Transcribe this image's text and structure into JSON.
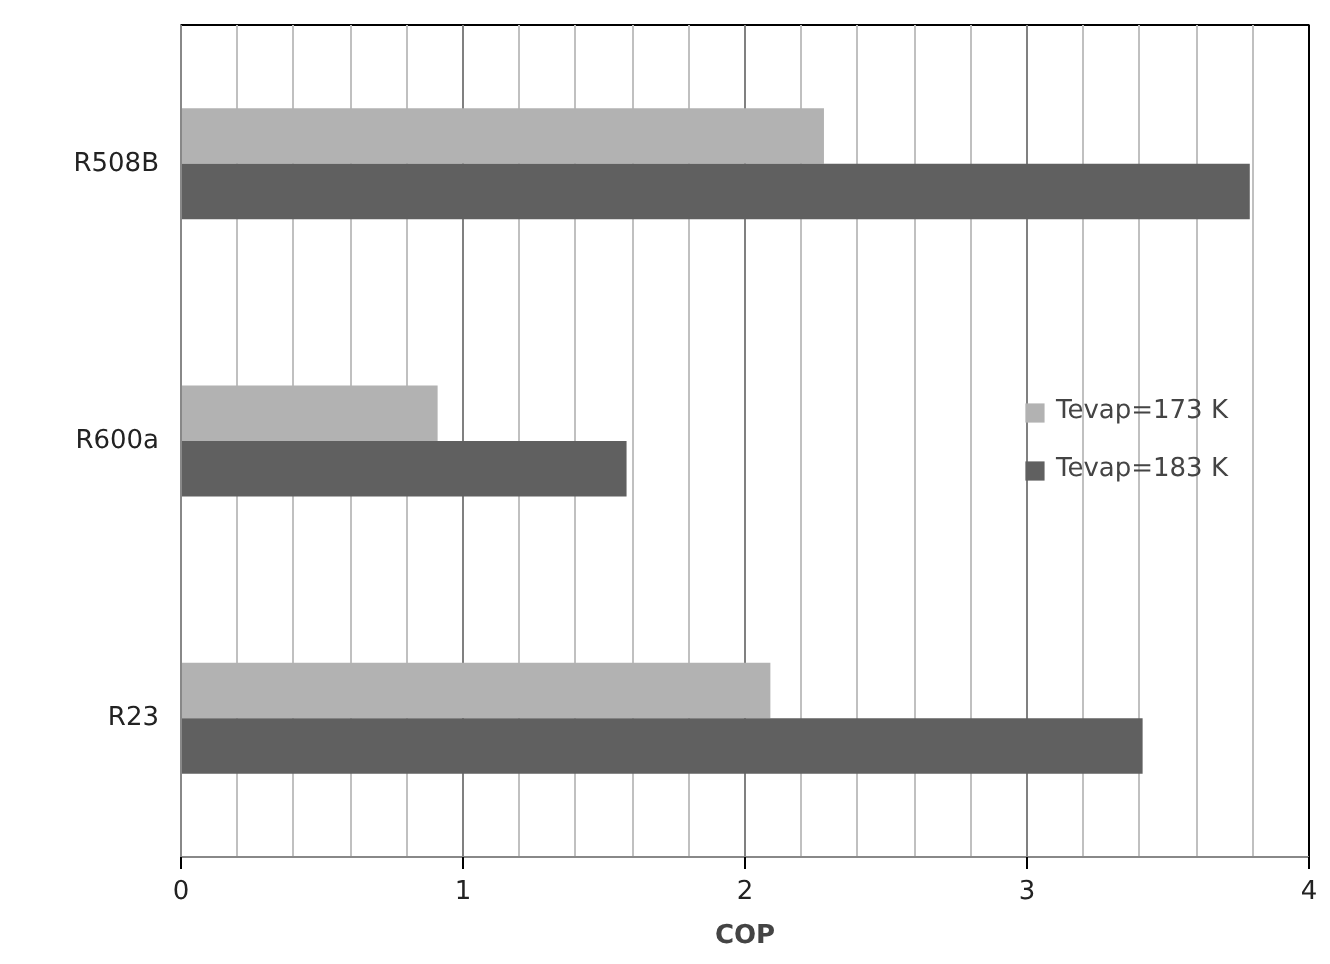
{
  "chart_data": {
    "type": "bar",
    "orientation": "horizontal",
    "xlabel": "COP",
    "categories": [
      "R508B",
      "R600a",
      "R23"
    ],
    "series": [
      {
        "name": "Tevap=173 K",
        "color": "#b2b2b2",
        "values": [
          2.28,
          0.91,
          2.09
        ]
      },
      {
        "name": "Tevap=183 K",
        "color": "#606060",
        "values": [
          3.79,
          1.58,
          3.41
        ]
      }
    ],
    "xlim": [
      0,
      4
    ],
    "xticks": [
      0,
      1,
      2,
      3,
      4
    ],
    "grid": "x",
    "legend": "right"
  }
}
